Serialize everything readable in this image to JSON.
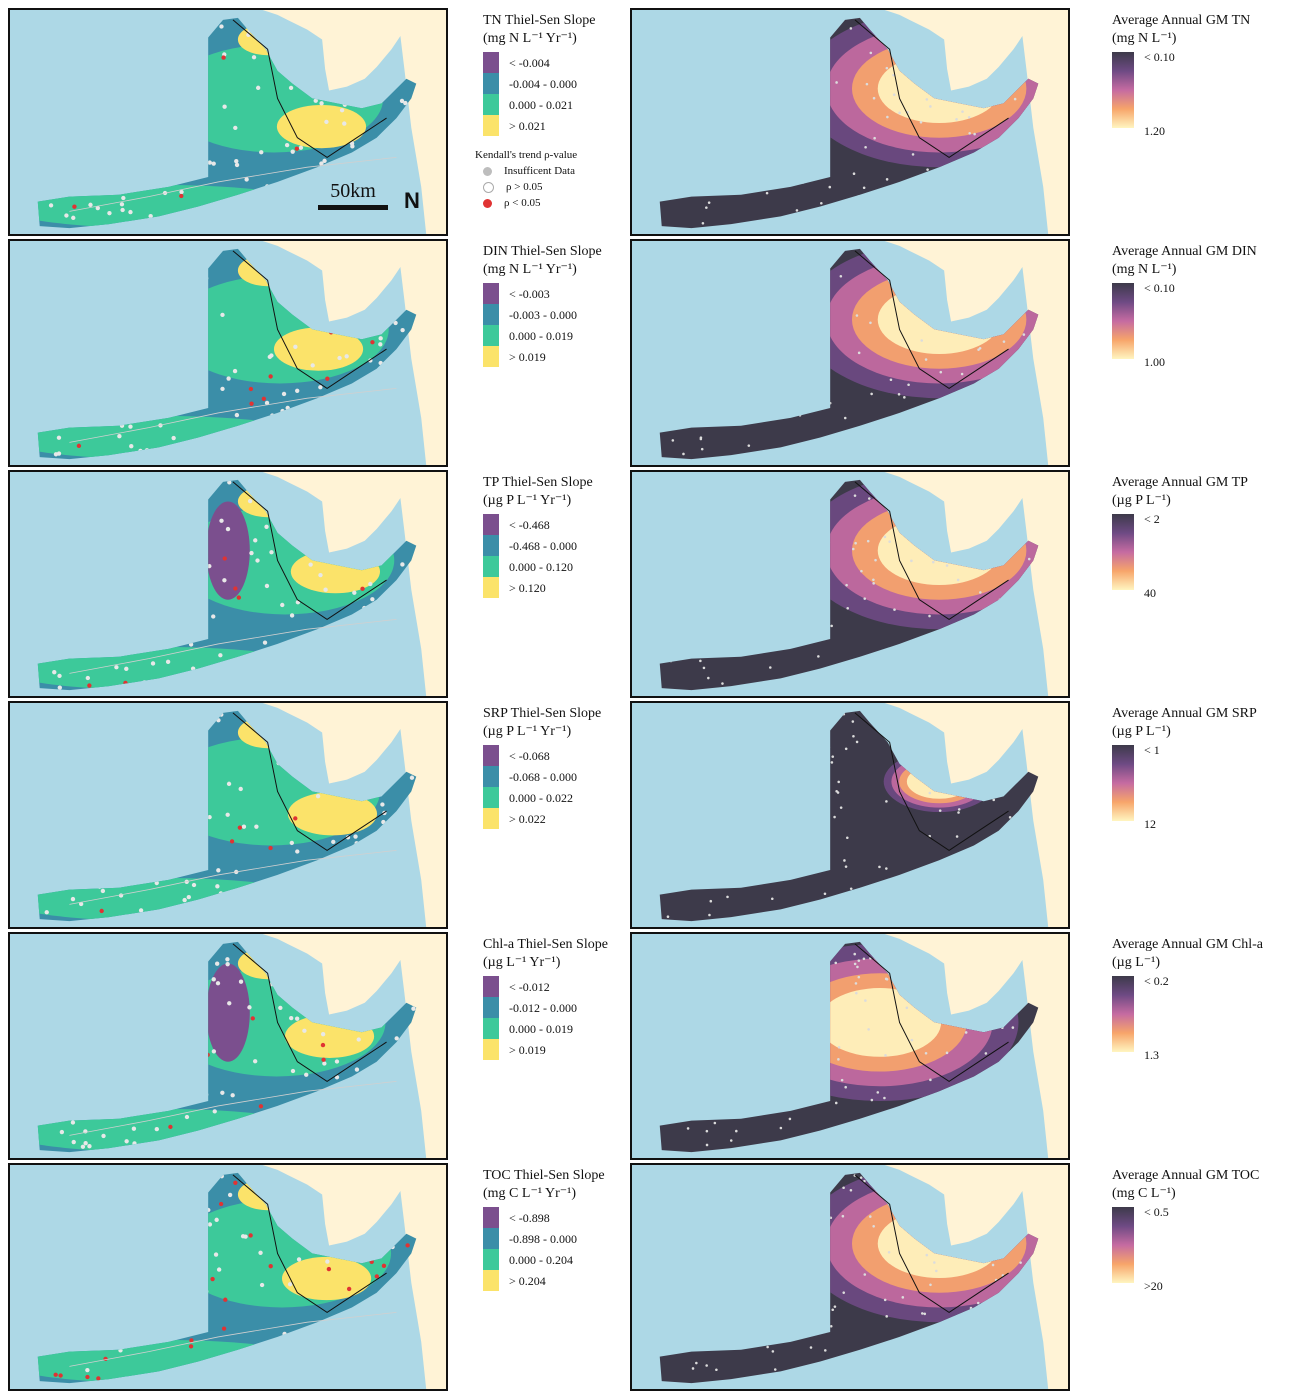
{
  "trend_legend": {
    "categories": [
      "< -0.004",
      "-0.004 - 0.000",
      "0.000 - 0.021",
      "> 0.021"
    ],
    "kendall_title": "Kendall's trend ρ-value",
    "kendall_items": [
      "Insufficent Data",
      "ρ > 0.05",
      "ρ < 0.05"
    ]
  },
  "scale_bar": {
    "label": "50km",
    "north": "N"
  },
  "rows": [
    {
      "trend_title_1": "TN Thiel-Sen Slope",
      "trend_title_2": "(mg N L⁻¹ Yr⁻¹)",
      "trend_bins": [
        "< -0.004",
        "-0.004 -  0.000",
        "0.000 -  0.021",
        "> 0.021"
      ],
      "gm_title_1": "Average Annual GM TN",
      "gm_title_2": "(mg N L⁻¹)",
      "gm_low": "< 0.10",
      "gm_high": "1.20"
    },
    {
      "trend_title_1": "DIN Thiel-Sen Slope",
      "trend_title_2": "(mg N L⁻¹ Yr⁻¹)",
      "trend_bins": [
        "< -0.003",
        "-0.003 -  0.000",
        "0.000 -  0.019",
        "> 0.019"
      ],
      "gm_title_1": "Average Annual GM DIN",
      "gm_title_2": "(mg N L⁻¹)",
      "gm_low": "< 0.10",
      "gm_high": "1.00"
    },
    {
      "trend_title_1": "TP Thiel-Sen Slope",
      "trend_title_2": "(µg P L⁻¹ Yr⁻¹)",
      "trend_bins": [
        "< -0.468",
        "-0.468 -  0.000",
        "0.000 -  0.120",
        "> 0.120"
      ],
      "gm_title_1": "Average Annual GM TP",
      "gm_title_2": "(µg P L⁻¹)",
      "gm_low": "< 2",
      "gm_high": "40"
    },
    {
      "trend_title_1": "SRP Thiel-Sen Slope",
      "trend_title_2": "(µg P L⁻¹ Yr⁻¹)",
      "trend_bins": [
        "< -0.068",
        "-0.068 -  0.000",
        "0.000 -  0.022",
        "> 0.022"
      ],
      "gm_title_1": "Average Annual GM SRP",
      "gm_title_2": "(µg P L⁻¹)",
      "gm_low": "< 1",
      "gm_high": "12"
    },
    {
      "trend_title_1": "Chl-a Thiel-Sen Slope",
      "trend_title_2": "(µg L⁻¹ Yr⁻¹)",
      "trend_bins": [
        "< -0.012",
        "-0.012 -  0.000",
        "0.000 -  0.019",
        "> 0.019"
      ],
      "gm_title_1": "Average Annual GM Chl-a",
      "gm_title_2": "(µg L⁻¹)",
      "gm_low": "< 0.2",
      "gm_high": "1.3"
    },
    {
      "trend_title_1": "TOC Thiel-Sen Slope",
      "trend_title_2": "(mg C L⁻¹ Yr⁻¹)",
      "trend_bins": [
        "< -0.898",
        "-0.898 -  0.000",
        "0.000 -  0.204",
        "> 0.204"
      ],
      "gm_title_1": "Average Annual GM TOC",
      "gm_title_2": "(mg C L⁻¹)",
      "gm_low": "< 0.5",
      "gm_high": ">20"
    }
  ],
  "colors": {
    "water": "#add8e6",
    "land": "#fff3d6",
    "trend_bins": [
      "#7b4f8e",
      "#3b8ea8",
      "#3dc99a",
      "#fbe36a"
    ],
    "gm_gradient": [
      "#3d3a4a",
      "#6e4a84",
      "#c56ba1",
      "#f7a56a",
      "#fff5c0"
    ],
    "sig_point": "#e03333",
    "nonsig_point": "#e8e8e8",
    "insufficient_point": "#bdbdbd"
  }
}
